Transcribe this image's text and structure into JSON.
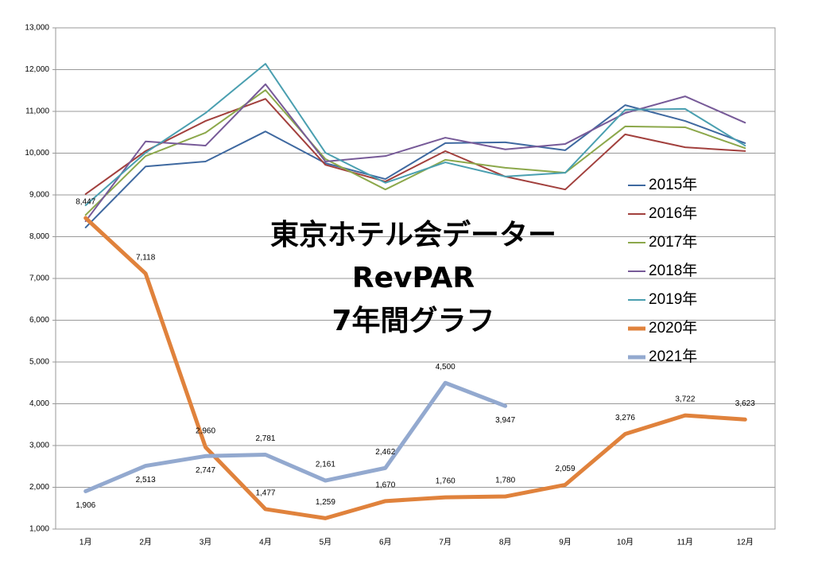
{
  "chart_data": {
    "type": "line",
    "title": [
      "東京ホテル会データー",
      "RevPAR",
      "7年間グラフ"
    ],
    "categories": [
      "1月",
      "2月",
      "3月",
      "4月",
      "5月",
      "6月",
      "7月",
      "8月",
      "9月",
      "10月",
      "11月",
      "12月"
    ],
    "ylim": [
      1000,
      13000
    ],
    "yticks": [
      {
        "value": 1000,
        "label": "1,000"
      },
      {
        "value": 2000,
        "label": "2,000"
      },
      {
        "value": 3000,
        "label": "3,000"
      },
      {
        "value": 4000,
        "label": "4,000"
      },
      {
        "value": 5000,
        "label": "5,000"
      },
      {
        "value": 6000,
        "label": "6,000"
      },
      {
        "value": 7000,
        "label": "7,000"
      },
      {
        "value": 8000,
        "label": "8,000"
      },
      {
        "value": 9000,
        "label": "9,000"
      },
      {
        "value": 10000,
        "label": "10,000"
      },
      {
        "value": 11000,
        "label": "11,000"
      },
      {
        "value": 12000,
        "label": "12,000"
      },
      {
        "value": 13000,
        "label": "13,000"
      }
    ],
    "grid": true,
    "legend": "right",
    "series": [
      {
        "name": "2015年",
        "color": "#3f69a0",
        "values": [
          8220,
          9680,
          9800,
          10520,
          9760,
          9380,
          10240,
          10260,
          10070,
          11150,
          10770,
          10240
        ]
      },
      {
        "name": "2016年",
        "color": "#a2403d",
        "values": [
          9020,
          10050,
          10770,
          11300,
          9720,
          9320,
          10050,
          9440,
          9130,
          10450,
          10140,
          10050
        ]
      },
      {
        "name": "2017年",
        "color": "#8ca84b",
        "values": [
          8520,
          9930,
          10490,
          11510,
          9860,
          9130,
          9840,
          9650,
          9530,
          10640,
          10620,
          10120
        ]
      },
      {
        "name": "2018年",
        "color": "#775a98",
        "values": [
          8370,
          10280,
          10180,
          11650,
          9800,
          9930,
          10370,
          10090,
          10220,
          10960,
          11360,
          10730
        ]
      },
      {
        "name": "2019年",
        "color": "#4a9fb0",
        "values": [
          8750,
          10010,
          10960,
          12140,
          10010,
          9290,
          9780,
          9440,
          9530,
          11040,
          11060,
          10180
        ]
      },
      {
        "name": "2020年",
        "color": "#e0823c",
        "values": [
          8447,
          7118,
          2960,
          1477,
          1259,
          1670,
          1760,
          1780,
          2059,
          3276,
          3722,
          3623
        ],
        "value_labels": [
          "8,447",
          "7,118",
          "2,960",
          "1,477",
          "1,259",
          "1,670",
          "1,760",
          "1,780",
          "2,059",
          "3,276",
          "3,722",
          "3,623"
        ]
      },
      {
        "name": "2021年",
        "color": "#93a9cf",
        "values": [
          1906,
          2513,
          2747,
          2781,
          2161,
          2462,
          4500,
          3947,
          null,
          null,
          null,
          null
        ],
        "value_labels": [
          "1,906",
          "2,513",
          "2,747",
          "2,781",
          "2,161",
          "2,462",
          "4,500",
          "3,947",
          null,
          null,
          null,
          null
        ]
      }
    ]
  }
}
